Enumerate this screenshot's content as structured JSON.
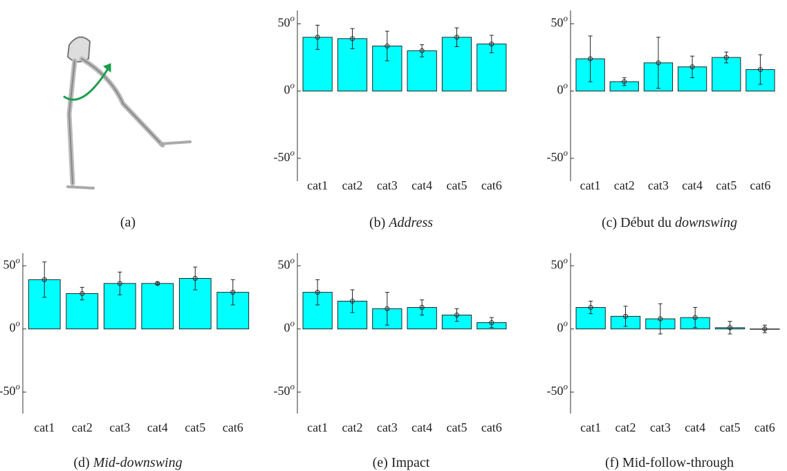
{
  "image_caption": "(a)",
  "chart_data": [
    {
      "type": "bar",
      "caption": [
        {
          "text": "(b) "
        },
        {
          "text": "Address",
          "italic": true
        }
      ],
      "categories": [
        "cat1",
        "cat2",
        "cat3",
        "cat4",
        "cat5",
        "cat6"
      ],
      "values": [
        40,
        39,
        33.5,
        30,
        40,
        35
      ],
      "errors": [
        9,
        7.5,
        11,
        4.5,
        7,
        6.5
      ],
      "color": "#00ffff",
      "ylim": [
        -67,
        60
      ],
      "yticks": [
        {
          "value": -50,
          "label": "-50",
          "sup": "o"
        },
        {
          "value": 0,
          "label": "0",
          "sup": "o"
        },
        {
          "value": 50,
          "label": "50",
          "sup": "o"
        }
      ]
    },
    {
      "type": "bar",
      "caption": [
        {
          "text": "(c) Début du "
        },
        {
          "text": "downswing",
          "italic": true
        }
      ],
      "categories": [
        "cat1",
        "cat2",
        "cat3",
        "cat4",
        "cat5",
        "cat6"
      ],
      "values": [
        24,
        7,
        21,
        18,
        25,
        16
      ],
      "errors": [
        17,
        3,
        19,
        8,
        4,
        11
      ],
      "color": "#00ffff",
      "ylim": [
        -67,
        60
      ],
      "yticks": [
        {
          "value": -50,
          "label": "-50",
          "sup": "o"
        },
        {
          "value": 0,
          "label": "0",
          "sup": "o"
        },
        {
          "value": 50,
          "label": "50",
          "sup": "o"
        }
      ]
    },
    {
      "type": "bar",
      "caption": [
        {
          "text": "(d) "
        },
        {
          "text": "Mid-downswing",
          "italic": true
        }
      ],
      "categories": [
        "cat1",
        "cat2",
        "cat3",
        "cat4",
        "cat5",
        "cat6"
      ],
      "values": [
        39,
        28,
        36,
        36,
        40,
        29
      ],
      "errors": [
        14,
        5,
        9,
        1,
        9,
        10
      ],
      "color": "#00ffff",
      "ylim": [
        -67,
        60
      ],
      "yticks": [
        {
          "value": -50,
          "label": "-50",
          "sup": "o"
        },
        {
          "value": 0,
          "label": "0",
          "sup": "o"
        },
        {
          "value": 50,
          "label": "50",
          "sup": "o"
        }
      ]
    },
    {
      "type": "bar",
      "caption": [
        {
          "text": "(e) Impact"
        }
      ],
      "categories": [
        "cat1",
        "cat2",
        "cat3",
        "cat4",
        "cat5",
        "cat6"
      ],
      "values": [
        29,
        22,
        16,
        17,
        11,
        5
      ],
      "errors": [
        10,
        9,
        13,
        6,
        5,
        4
      ],
      "color": "#00ffff",
      "ylim": [
        -67,
        60
      ],
      "yticks": [
        {
          "value": -50,
          "label": "-50",
          "sup": "o"
        },
        {
          "value": 0,
          "label": "0",
          "sup": "o"
        },
        {
          "value": 50,
          "label": "50",
          "sup": "o"
        }
      ]
    },
    {
      "type": "bar",
      "caption": [
        {
          "text": "(f) Mid-follow-through"
        }
      ],
      "categories": [
        "cat1",
        "cat2",
        "cat3",
        "cat4",
        "cat5",
        "cat6"
      ],
      "values": [
        17,
        10,
        8,
        9,
        1,
        0
      ],
      "errors": [
        5,
        8,
        12,
        8,
        5,
        3
      ],
      "color": "#00ffff",
      "ylim": [
        -67,
        60
      ],
      "yticks": [
        {
          "value": -50,
          "label": "-50",
          "sup": "o"
        },
        {
          "value": 0,
          "label": "0",
          "sup": "o"
        },
        {
          "value": 50,
          "label": "50",
          "sup": "o"
        }
      ]
    }
  ]
}
